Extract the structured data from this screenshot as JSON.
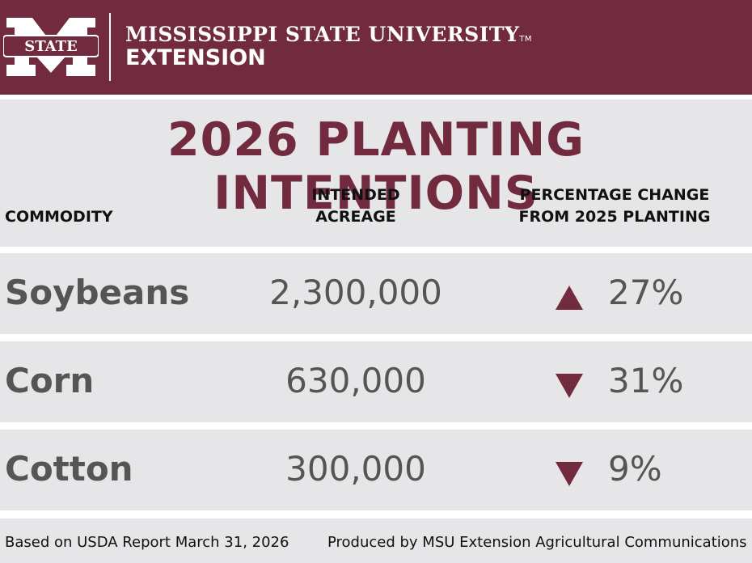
{
  "header": {
    "logo_text": "STATE",
    "university": "MISSISSIPPI STATE UNIVERSITY",
    "trademark": "TM",
    "unit": "EXTENSION"
  },
  "title": "2026 PLANTING INTENTIONS",
  "table": {
    "columns": [
      "COMMODITY",
      "INTENDED\nACREAGE",
      "PERCENTAGE CHANGE\nFROM 2025 PLANTING"
    ],
    "rows": [
      {
        "commodity": "Soybeans",
        "acreage": "2,300,000",
        "direction": "up",
        "change": "27%"
      },
      {
        "commodity": "Corn",
        "acreage": "630,000",
        "direction": "down",
        "change": "31%"
      },
      {
        "commodity": "Cotton",
        "acreage": "300,000",
        "direction": "down",
        "change": "9%"
      }
    ]
  },
  "footer": {
    "source": "Based on USDA Report March 31, 2026",
    "credit": "Produced by MSU Extension Agricultural Communications"
  }
}
